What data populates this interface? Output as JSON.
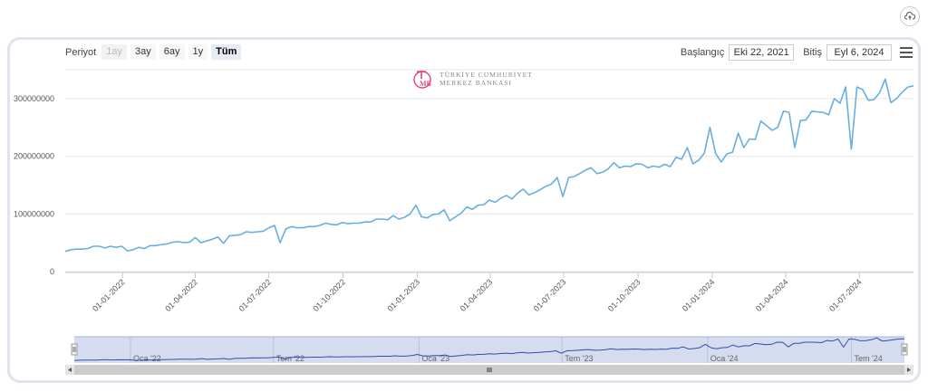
{
  "toolbar": {
    "period_label": "Periyot",
    "range_buttons": [
      {
        "label": "1ay",
        "state": "disabled"
      },
      {
        "label": "3ay",
        "state": "normal"
      },
      {
        "label": "6ay",
        "state": "normal"
      },
      {
        "label": "1y",
        "state": "normal"
      },
      {
        "label": "Tüm",
        "state": "active"
      }
    ],
    "start_label": "Başlangıç",
    "start_value": "Eki 22, 2021",
    "end_label": "Bitiş",
    "end_value": "Eyl 6, 2024"
  },
  "logo": {
    "line1": "TÜRKİYE CUMHURİYET",
    "line2": "MERKEZ BANKASI"
  },
  "icons": {
    "export": "cloud-upload-icon",
    "menu": "hamburger-menu-icon"
  },
  "colors": {
    "series": "#6aaee0",
    "navigator_fill": "#d6dcf0",
    "navigator_line": "#2e4fa8",
    "accent_red": "#e0457b"
  },
  "chart_data": {
    "type": "line",
    "title": "",
    "xlabel": "",
    "ylabel": "",
    "ylim": [
      0,
      350000000
    ],
    "y_ticks": [
      "0",
      "100000000",
      "200000000",
      "300000000"
    ],
    "x_ticks": [
      "01-01-2022",
      "01-04-2022",
      "01-07-2022",
      "01-10-2022",
      "01-01-2023",
      "01-04-2023",
      "01-07-2023",
      "01-10-2023",
      "01-01-2024",
      "01-04-2024",
      "01-07-2024"
    ],
    "x_range": [
      "2021-10-22",
      "2024-09-06"
    ],
    "grid": true,
    "legend": "none",
    "series": [
      {
        "values": [
          [
            "2021-10-22",
            35000000
          ],
          [
            "2021-10-29",
            38000000
          ],
          [
            "2021-11-05",
            39000000
          ],
          [
            "2021-11-12",
            39000000
          ],
          [
            "2021-11-19",
            40000000
          ],
          [
            "2021-11-26",
            44000000
          ],
          [
            "2021-12-03",
            44000000
          ],
          [
            "2021-12-10",
            41000000
          ],
          [
            "2021-12-17",
            44000000
          ],
          [
            "2021-12-24",
            42000000
          ],
          [
            "2021-12-31",
            44000000
          ],
          [
            "2022-01-07",
            36000000
          ],
          [
            "2022-01-14",
            38000000
          ],
          [
            "2022-01-21",
            42000000
          ],
          [
            "2022-01-28",
            40000000
          ],
          [
            "2022-02-04",
            45000000
          ],
          [
            "2022-02-11",
            45000000
          ],
          [
            "2022-02-18",
            47000000
          ],
          [
            "2022-02-25",
            48000000
          ],
          [
            "2022-03-04",
            51000000
          ],
          [
            "2022-03-11",
            52000000
          ],
          [
            "2022-03-18",
            50000000
          ],
          [
            "2022-03-25",
            51000000
          ],
          [
            "2022-04-01",
            59000000
          ],
          [
            "2022-04-08",
            50000000
          ],
          [
            "2022-04-15",
            53000000
          ],
          [
            "2022-04-22",
            56000000
          ],
          [
            "2022-04-29",
            60000000
          ],
          [
            "2022-05-06",
            49000000
          ],
          [
            "2022-05-13",
            62000000
          ],
          [
            "2022-05-20",
            63000000
          ],
          [
            "2022-05-27",
            64000000
          ],
          [
            "2022-06-03",
            69000000
          ],
          [
            "2022-06-10",
            68000000
          ],
          [
            "2022-06-17",
            69000000
          ],
          [
            "2022-06-24",
            70000000
          ],
          [
            "2022-07-01",
            76000000
          ],
          [
            "2022-07-08",
            80000000
          ],
          [
            "2022-07-15",
            50000000
          ],
          [
            "2022-07-22",
            74000000
          ],
          [
            "2022-07-29",
            78000000
          ],
          [
            "2022-08-05",
            76000000
          ],
          [
            "2022-08-12",
            76000000
          ],
          [
            "2022-08-19",
            78000000
          ],
          [
            "2022-08-26",
            78000000
          ],
          [
            "2022-09-02",
            80000000
          ],
          [
            "2022-09-09",
            84000000
          ],
          [
            "2022-09-16",
            82000000
          ],
          [
            "2022-09-23",
            81000000
          ],
          [
            "2022-09-30",
            85000000
          ],
          [
            "2022-10-07",
            83000000
          ],
          [
            "2022-10-14",
            84000000
          ],
          [
            "2022-10-21",
            84000000
          ],
          [
            "2022-10-28",
            86000000
          ],
          [
            "2022-11-04",
            86000000
          ],
          [
            "2022-11-11",
            91000000
          ],
          [
            "2022-11-18",
            91000000
          ],
          [
            "2022-11-25",
            90000000
          ],
          [
            "2022-12-02",
            97000000
          ],
          [
            "2022-12-09",
            91000000
          ],
          [
            "2022-12-16",
            94000000
          ],
          [
            "2022-12-23",
            100000000
          ],
          [
            "2022-12-30",
            115000000
          ],
          [
            "2023-01-06",
            95000000
          ],
          [
            "2023-01-13",
            93000000
          ],
          [
            "2023-01-20",
            99000000
          ],
          [
            "2023-01-27",
            100000000
          ],
          [
            "2023-02-03",
            107000000
          ],
          [
            "2023-02-10",
            88000000
          ],
          [
            "2023-02-17",
            95000000
          ],
          [
            "2023-02-24",
            101000000
          ],
          [
            "2023-03-03",
            112000000
          ],
          [
            "2023-03-10",
            108000000
          ],
          [
            "2023-03-17",
            115000000
          ],
          [
            "2023-03-24",
            116000000
          ],
          [
            "2023-03-31",
            124000000
          ],
          [
            "2023-04-07",
            120000000
          ],
          [
            "2023-04-14",
            127000000
          ],
          [
            "2023-04-21",
            132000000
          ],
          [
            "2023-04-28",
            126000000
          ],
          [
            "2023-05-05",
            136000000
          ],
          [
            "2023-05-12",
            143000000
          ],
          [
            "2023-05-19",
            133000000
          ],
          [
            "2023-05-26",
            137000000
          ],
          [
            "2023-06-02",
            142000000
          ],
          [
            "2023-06-09",
            148000000
          ],
          [
            "2023-06-16",
            152000000
          ],
          [
            "2023-06-23",
            163000000
          ],
          [
            "2023-06-30",
            130000000
          ],
          [
            "2023-07-07",
            163000000
          ],
          [
            "2023-07-14",
            165000000
          ],
          [
            "2023-07-21",
            170000000
          ],
          [
            "2023-07-28",
            176000000
          ],
          [
            "2023-08-04",
            180000000
          ],
          [
            "2023-08-11",
            170000000
          ],
          [
            "2023-08-18",
            172000000
          ],
          [
            "2023-08-25",
            178000000
          ],
          [
            "2023-09-01",
            189000000
          ],
          [
            "2023-09-08",
            180000000
          ],
          [
            "2023-09-15",
            183000000
          ],
          [
            "2023-09-22",
            182000000
          ],
          [
            "2023-09-29",
            187000000
          ],
          [
            "2023-10-06",
            186000000
          ],
          [
            "2023-10-13",
            180000000
          ],
          [
            "2023-10-20",
            183000000
          ],
          [
            "2023-10-27",
            181000000
          ],
          [
            "2023-11-03",
            186000000
          ],
          [
            "2023-11-10",
            182000000
          ],
          [
            "2023-11-17",
            198000000
          ],
          [
            "2023-11-24",
            195000000
          ],
          [
            "2023-12-01",
            215000000
          ],
          [
            "2023-12-08",
            187000000
          ],
          [
            "2023-12-15",
            193000000
          ],
          [
            "2023-12-22",
            205000000
          ],
          [
            "2023-12-29",
            250000000
          ],
          [
            "2024-01-05",
            205000000
          ],
          [
            "2024-01-12",
            190000000
          ],
          [
            "2024-01-19",
            204000000
          ],
          [
            "2024-01-26",
            207000000
          ],
          [
            "2024-02-02",
            240000000
          ],
          [
            "2024-02-09",
            215000000
          ],
          [
            "2024-02-16",
            230000000
          ],
          [
            "2024-02-23",
            229000000
          ],
          [
            "2024-03-01",
            261000000
          ],
          [
            "2024-03-08",
            253000000
          ],
          [
            "2024-03-15",
            245000000
          ],
          [
            "2024-03-22",
            250000000
          ],
          [
            "2024-03-29",
            278000000
          ],
          [
            "2024-04-05",
            276000000
          ],
          [
            "2024-04-12",
            215000000
          ],
          [
            "2024-04-19",
            262000000
          ],
          [
            "2024-04-26",
            263000000
          ],
          [
            "2024-05-03",
            278000000
          ],
          [
            "2024-05-10",
            277000000
          ],
          [
            "2024-05-17",
            276000000
          ],
          [
            "2024-05-24",
            272000000
          ],
          [
            "2024-05-31",
            300000000
          ],
          [
            "2024-06-07",
            292000000
          ],
          [
            "2024-06-14",
            320000000
          ],
          [
            "2024-06-21",
            212000000
          ],
          [
            "2024-06-28",
            320000000
          ],
          [
            "2024-07-05",
            316000000
          ],
          [
            "2024-07-12",
            297000000
          ],
          [
            "2024-07-19",
            298000000
          ],
          [
            "2024-07-26",
            310000000
          ],
          [
            "2024-08-02",
            334000000
          ],
          [
            "2024-08-09",
            293000000
          ],
          [
            "2024-08-16",
            300000000
          ],
          [
            "2024-08-23",
            311000000
          ],
          [
            "2024-08-30",
            320000000
          ],
          [
            "2024-09-06",
            322000000
          ]
        ]
      }
    ],
    "navigator": {
      "labels": [
        "Oca '22",
        "Tem '22",
        "Oca '23",
        "Tem '23",
        "Oca '24",
        "Tem '24"
      ],
      "label_dates": [
        "2022-01-01",
        "2022-07-01",
        "2023-01-01",
        "2023-07-01",
        "2024-01-01",
        "2024-07-01"
      ],
      "selection": [
        "2021-10-22",
        "2024-09-06"
      ]
    }
  }
}
